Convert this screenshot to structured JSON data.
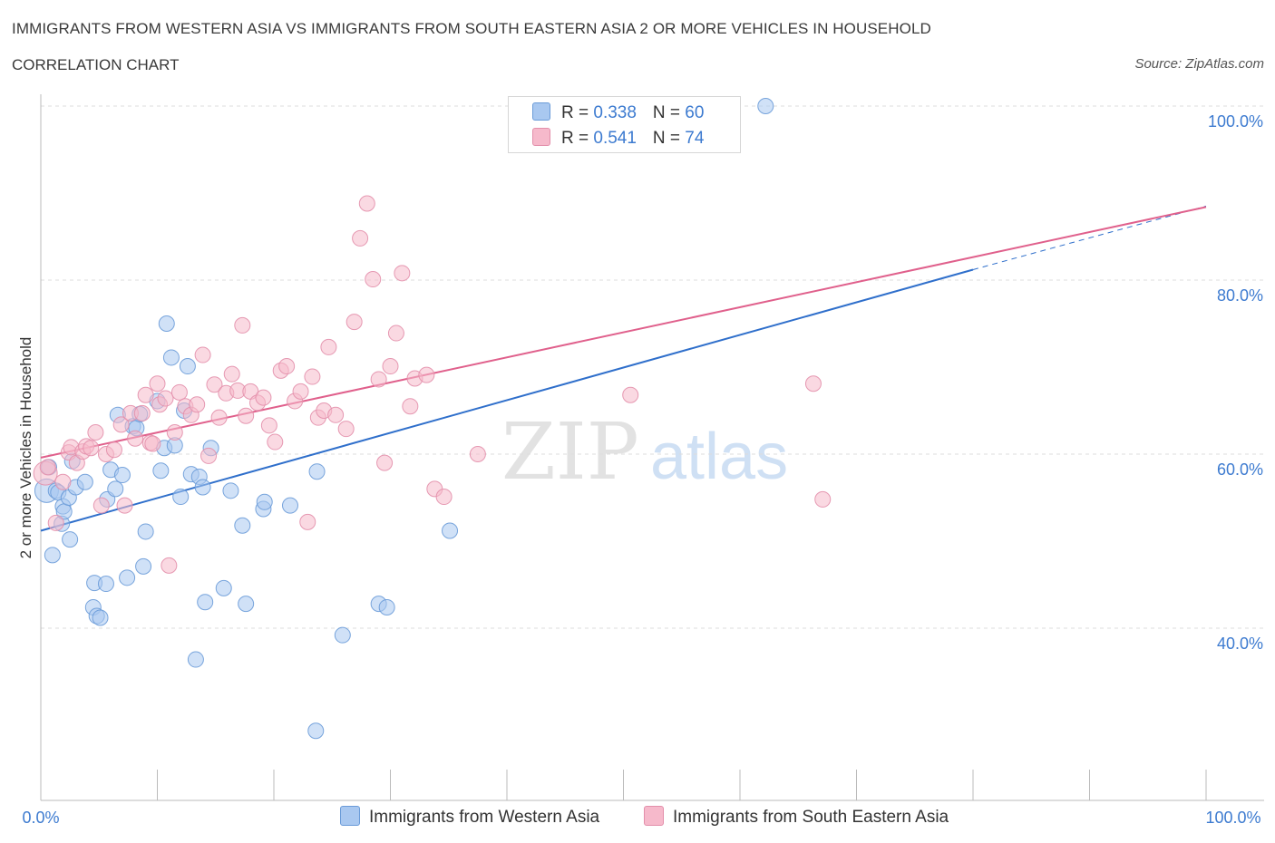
{
  "header": {
    "title": "IMMIGRANTS FROM WESTERN ASIA VS IMMIGRANTS FROM SOUTH EASTERN ASIA 2 OR MORE VEHICLES IN HOUSEHOLD",
    "subtitle": "CORRELATION CHART",
    "source": "Source: ZipAtlas.com"
  },
  "watermark": {
    "zip": "ZIP",
    "atlas": "atlas"
  },
  "legend": {
    "series1": {
      "r_label": "R = ",
      "r_value": "0.338",
      "n_label": "N = ",
      "n_value": "60"
    },
    "series2": {
      "r_label": "R = ",
      "r_value": "0.541",
      "n_label": "N = ",
      "n_value": "74"
    }
  },
  "colors": {
    "blue_fill": "#a9c8f0",
    "blue_stroke": "#6a9bd8",
    "blue_line": "#2f6fcb",
    "pink_fill": "#f6b9cb",
    "pink_stroke": "#e38fab",
    "pink_line": "#e0608c",
    "accent_text": "#3d7bd0"
  },
  "chart_data": {
    "type": "scatter",
    "title": "IMMIGRANTS FROM WESTERN ASIA VS IMMIGRANTS FROM SOUTH EASTERN ASIA 2 OR MORE VEHICLES IN HOUSEHOLD",
    "xlabel": "",
    "ylabel": "2 or more Vehicles in Household",
    "xlim": [
      0,
      100
    ],
    "ylim": [
      20,
      100
    ],
    "x_tick_labels": [
      "0.0%",
      "100.0%"
    ],
    "y_tick_labels": [
      "100.0%",
      "80.0%",
      "60.0%",
      "40.0%"
    ],
    "y_ticks": [
      100,
      80,
      60,
      40
    ],
    "grid": true,
    "legend_position": "bottom",
    "series": [
      {
        "name": "Immigrants from Western Asia",
        "color": "#a9c8f0",
        "trend": {
          "x": [
            0,
            80
          ],
          "y": [
            51.2,
            81.2
          ],
          "dashed_to": [
            100,
            88.5
          ]
        },
        "points": [
          [
            0.5,
            55.8
          ],
          [
            0.7,
            58.5
          ],
          [
            1.0,
            48.4
          ],
          [
            1.3,
            55.8
          ],
          [
            1.5,
            55.6
          ],
          [
            1.8,
            52.0
          ],
          [
            1.9,
            54.0
          ],
          [
            2.0,
            53.4
          ],
          [
            2.4,
            55.0
          ],
          [
            2.5,
            50.2
          ],
          [
            2.7,
            59.2
          ],
          [
            3.0,
            56.2
          ],
          [
            3.8,
            56.8
          ],
          [
            4.5,
            42.4
          ],
          [
            4.6,
            45.2
          ],
          [
            4.8,
            41.4
          ],
          [
            5.1,
            41.2
          ],
          [
            5.6,
            45.1
          ],
          [
            5.7,
            54.8
          ],
          [
            6.0,
            58.2
          ],
          [
            6.4,
            56.0
          ],
          [
            6.6,
            64.5
          ],
          [
            7.0,
            57.6
          ],
          [
            7.4,
            45.8
          ],
          [
            7.9,
            63.2
          ],
          [
            8.2,
            63.0
          ],
          [
            8.5,
            64.6
          ],
          [
            8.8,
            47.1
          ],
          [
            9.0,
            51.1
          ],
          [
            10.0,
            66.1
          ],
          [
            10.3,
            58.1
          ],
          [
            10.6,
            60.7
          ],
          [
            10.8,
            75.0
          ],
          [
            11.2,
            71.1
          ],
          [
            11.5,
            61.0
          ],
          [
            12.0,
            55.1
          ],
          [
            12.3,
            65.0
          ],
          [
            12.6,
            70.1
          ],
          [
            12.9,
            57.7
          ],
          [
            13.3,
            36.4
          ],
          [
            13.6,
            57.4
          ],
          [
            13.9,
            56.2
          ],
          [
            14.1,
            43.0
          ],
          [
            14.6,
            60.7
          ],
          [
            15.7,
            44.6
          ],
          [
            16.3,
            55.8
          ],
          [
            17.3,
            51.8
          ],
          [
            17.6,
            42.8
          ],
          [
            19.1,
            53.7
          ],
          [
            19.2,
            54.5
          ],
          [
            21.4,
            54.1
          ],
          [
            23.6,
            28.2
          ],
          [
            23.7,
            58.0
          ],
          [
            25.9,
            39.2
          ],
          [
            29.0,
            42.8
          ],
          [
            29.7,
            42.4
          ],
          [
            35.1,
            51.2
          ],
          [
            42.0,
            100.0
          ],
          [
            42.1,
            100.0
          ],
          [
            62.2,
            100.0
          ]
        ]
      },
      {
        "name": "Immigrants from South Eastern Asia",
        "color": "#f6b9cb",
        "trend": {
          "x": [
            0,
            100
          ],
          "y": [
            59.6,
            88.4
          ]
        },
        "points": [
          [
            0.4,
            57.8
          ],
          [
            0.6,
            58.5
          ],
          [
            1.3,
            52.1
          ],
          [
            1.9,
            56.8
          ],
          [
            2.4,
            60.2
          ],
          [
            2.6,
            60.8
          ],
          [
            3.1,
            59.0
          ],
          [
            3.6,
            60.3
          ],
          [
            3.9,
            60.9
          ],
          [
            4.3,
            60.7
          ],
          [
            4.7,
            62.5
          ],
          [
            5.2,
            54.1
          ],
          [
            5.6,
            60.0
          ],
          [
            6.3,
            60.5
          ],
          [
            6.9,
            63.4
          ],
          [
            7.2,
            54.1
          ],
          [
            7.7,
            64.7
          ],
          [
            8.1,
            61.8
          ],
          [
            8.7,
            64.7
          ],
          [
            9.0,
            66.8
          ],
          [
            9.4,
            61.3
          ],
          [
            9.6,
            61.2
          ],
          [
            10.0,
            68.1
          ],
          [
            10.2,
            65.7
          ],
          [
            10.7,
            66.4
          ],
          [
            11.0,
            47.2
          ],
          [
            11.5,
            62.5
          ],
          [
            11.9,
            67.1
          ],
          [
            12.4,
            65.5
          ],
          [
            12.9,
            64.5
          ],
          [
            13.4,
            65.7
          ],
          [
            13.9,
            71.4
          ],
          [
            14.4,
            59.8
          ],
          [
            14.9,
            68.0
          ],
          [
            15.3,
            64.2
          ],
          [
            15.9,
            67.0
          ],
          [
            16.4,
            69.2
          ],
          [
            16.9,
            67.3
          ],
          [
            17.3,
            74.8
          ],
          [
            17.6,
            64.4
          ],
          [
            18.0,
            67.2
          ],
          [
            18.6,
            65.9
          ],
          [
            19.1,
            66.5
          ],
          [
            19.6,
            63.3
          ],
          [
            20.1,
            61.4
          ],
          [
            20.6,
            69.6
          ],
          [
            21.1,
            70.1
          ],
          [
            21.8,
            66.1
          ],
          [
            22.3,
            67.2
          ],
          [
            22.9,
            52.2
          ],
          [
            23.3,
            68.9
          ],
          [
            23.8,
            64.2
          ],
          [
            24.3,
            65.0
          ],
          [
            24.7,
            72.3
          ],
          [
            25.3,
            64.5
          ],
          [
            26.2,
            62.9
          ],
          [
            26.9,
            75.2
          ],
          [
            27.4,
            84.8
          ],
          [
            28.0,
            88.8
          ],
          [
            28.5,
            80.1
          ],
          [
            29.0,
            68.6
          ],
          [
            29.5,
            59.0
          ],
          [
            30.0,
            70.1
          ],
          [
            30.5,
            73.9
          ],
          [
            31.0,
            80.8
          ],
          [
            31.7,
            65.5
          ],
          [
            32.1,
            68.7
          ],
          [
            33.1,
            69.1
          ],
          [
            33.8,
            56.0
          ],
          [
            34.6,
            55.1
          ],
          [
            37.5,
            60.0
          ],
          [
            50.6,
            66.8
          ],
          [
            66.3,
            68.1
          ],
          [
            67.1,
            54.8
          ]
        ]
      }
    ]
  },
  "bottom_legend": {
    "series1": "Immigrants from Western Asia",
    "series2": "Immigrants from South Eastern Asia"
  }
}
